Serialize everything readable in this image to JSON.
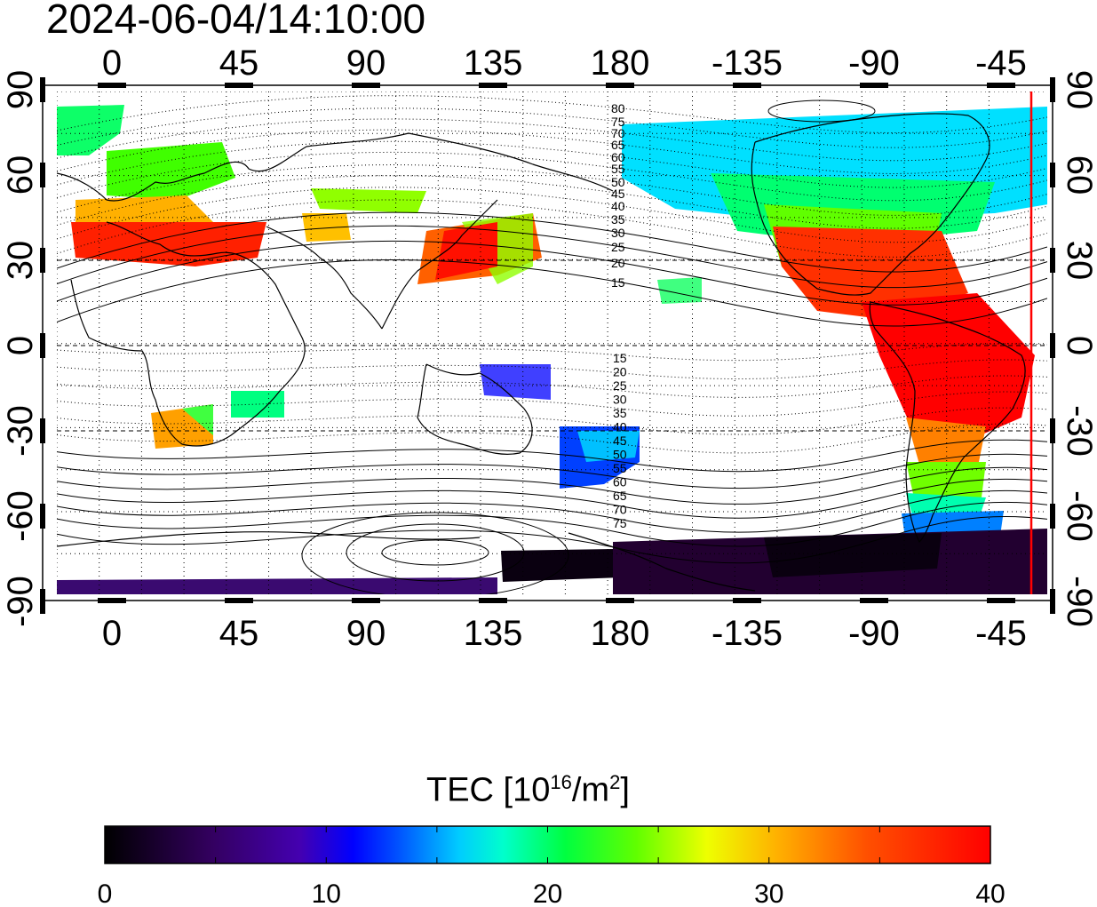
{
  "timestamp": "2024-06-04/14:10:00",
  "map": {
    "top_lon_labels": [
      "0",
      "45",
      "90",
      "135",
      "180",
      "-135",
      "-90",
      "-45"
    ],
    "bottom_lon_labels": [
      "0",
      "45",
      "90",
      "135",
      "180",
      "-135",
      "-90",
      "-45"
    ],
    "left_lat_labels": [
      "90",
      "60",
      "30",
      "0",
      "-30",
      "-60",
      "-90"
    ],
    "right_lat_labels": [
      "90",
      "60",
      "30",
      "0",
      "-30",
      "-60",
      "-90"
    ],
    "contour_labels_north": [
      "80",
      "75",
      "70",
      "65",
      "60",
      "55",
      "50",
      "45",
      "40",
      "35",
      "30",
      "25",
      "20",
      "15"
    ],
    "contour_labels_south": [
      "15",
      "20",
      "25",
      "30",
      "35",
      "40",
      "45",
      "50",
      "55",
      "60",
      "65",
      "70",
      "75"
    ],
    "marker_line_color": "#ff0000"
  },
  "colorbar": {
    "title_prefix": "TEC  [10",
    "title_sup1": "16",
    "title_mid": "/m",
    "title_sup2": "2",
    "title_suffix": "]",
    "tick_labels": [
      "0",
      "10",
      "20",
      "30",
      "40"
    ],
    "stops": [
      "#000000",
      "#2a0058",
      "#4b00a0",
      "#0000ff",
      "#0080ff",
      "#00ffff",
      "#00ff80",
      "#00ff00",
      "#80ff00",
      "#ffff00",
      "#ff8000",
      "#ff0000"
    ]
  }
}
